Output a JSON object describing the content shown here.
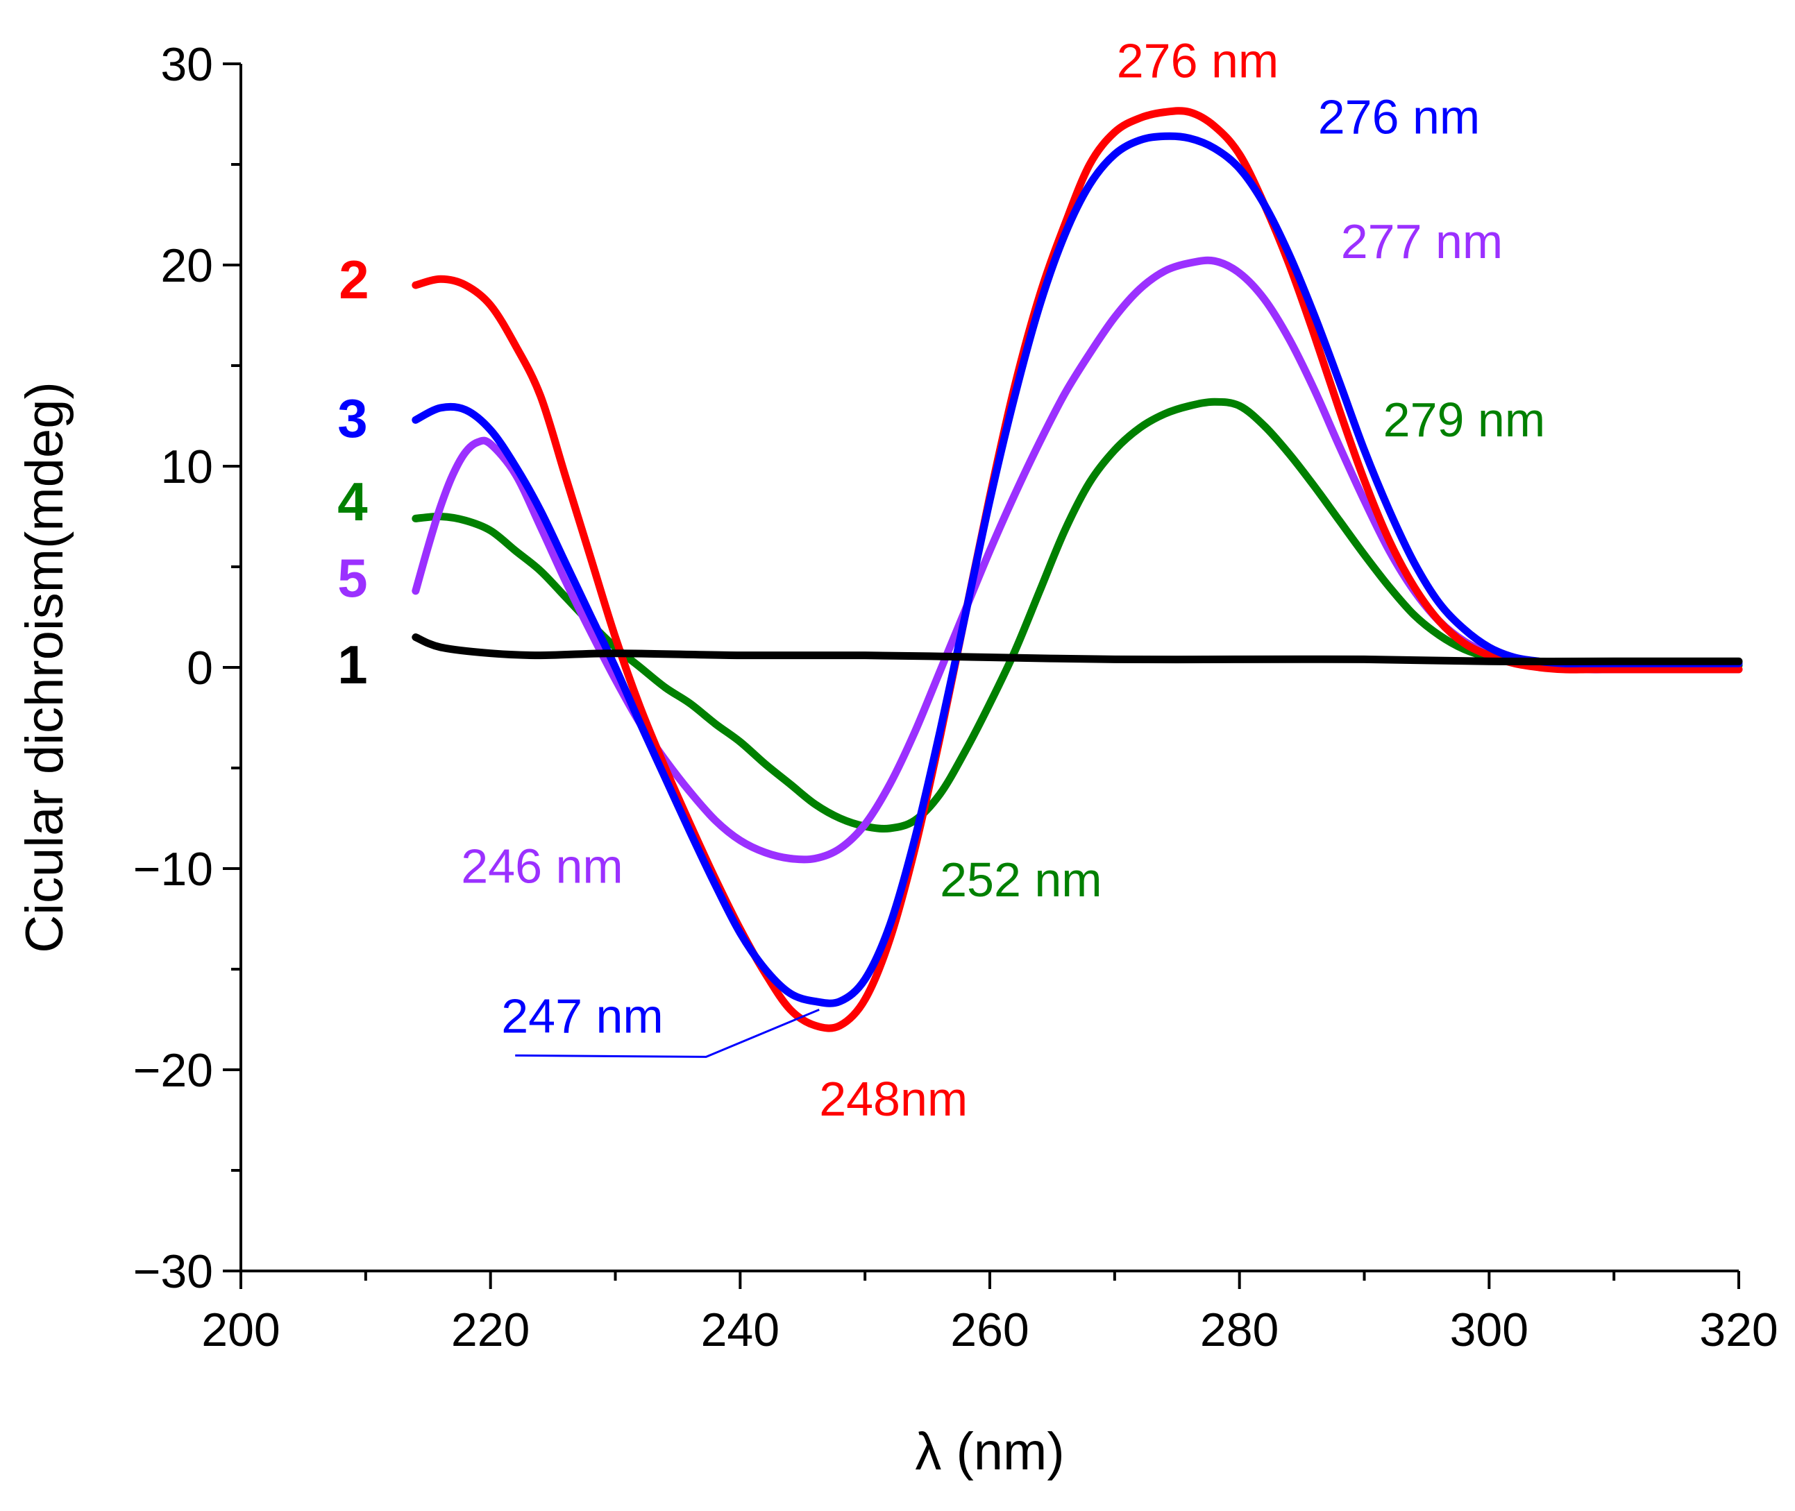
{
  "chart_data": {
    "type": "line",
    "title": "",
    "xlabel": "λ (nm)",
    "ylabel": "Cicular dichroism(mdeg)",
    "xlim": [
      200,
      320
    ],
    "ylim": [
      -30,
      30
    ],
    "x_major_ticks": [
      200,
      220,
      240,
      260,
      280,
      300,
      320
    ],
    "x_tick_labels": [
      "200",
      "220",
      "240",
      "260",
      "280",
      "300",
      "320"
    ],
    "y_major_ticks": [
      -30,
      -20,
      -10,
      0,
      10,
      20,
      30
    ],
    "y_tick_labels": [
      "−30",
      "−20",
      "−10",
      "0",
      "10",
      "20",
      "30"
    ],
    "grid": false,
    "series": [
      {
        "name": "1",
        "color": "#000000",
        "x": [
          214,
          216,
          220,
          224,
          230,
          240,
          250,
          260,
          270,
          280,
          290,
          300,
          310,
          320
        ],
        "y": [
          1.5,
          1.0,
          0.7,
          0.6,
          0.7,
          0.6,
          0.6,
          0.5,
          0.4,
          0.4,
          0.4,
          0.3,
          0.3,
          0.3
        ]
      },
      {
        "name": "2",
        "color": "#ff0000",
        "x": [
          214,
          216,
          218,
          220,
          222,
          224,
          226,
          228,
          230,
          232,
          234,
          236,
          238,
          240,
          242,
          244,
          246,
          248,
          250,
          252,
          254,
          256,
          258,
          260,
          262,
          264,
          266,
          268,
          270,
          272,
          274,
          276,
          278,
          280,
          282,
          284,
          286,
          288,
          290,
          292,
          294,
          296,
          298,
          300,
          302,
          304,
          306,
          308,
          310,
          314,
          320
        ],
        "y": [
          19.0,
          19.3,
          19.0,
          18.0,
          16.0,
          13.5,
          9.5,
          5.5,
          1.5,
          -2.0,
          -5.0,
          -7.8,
          -10.5,
          -13.0,
          -15.2,
          -17.0,
          -17.8,
          -17.8,
          -16.5,
          -13.5,
          -9.0,
          -3.5,
          2.5,
          8.5,
          14.0,
          18.5,
          22.0,
          25.0,
          26.6,
          27.3,
          27.6,
          27.6,
          26.9,
          25.5,
          23.0,
          20.0,
          16.5,
          12.8,
          9.3,
          6.3,
          4.0,
          2.3,
          1.2,
          0.6,
          0.2,
          0.0,
          -0.1,
          -0.1,
          -0.1,
          -0.1,
          -0.1
        ]
      },
      {
        "name": "3",
        "color": "#0000ff",
        "x": [
          214,
          216,
          218,
          220,
          222,
          224,
          226,
          228,
          230,
          232,
          234,
          236,
          238,
          240,
          242,
          244,
          246,
          248,
          250,
          252,
          254,
          256,
          258,
          260,
          262,
          264,
          266,
          268,
          270,
          272,
          274,
          276,
          278,
          280,
          282,
          284,
          286,
          288,
          290,
          292,
          294,
          296,
          298,
          300,
          302,
          304,
          306,
          308,
          310,
          314,
          320
        ],
        "y": [
          12.3,
          12.9,
          12.8,
          11.8,
          10.0,
          7.8,
          5.2,
          2.6,
          0.0,
          -2.8,
          -5.5,
          -8.2,
          -10.8,
          -13.2,
          -15.0,
          -16.2,
          -16.6,
          -16.6,
          -15.5,
          -12.8,
          -8.5,
          -3.2,
          2.5,
          8.3,
          13.5,
          18.0,
          21.5,
          24.0,
          25.5,
          26.2,
          26.4,
          26.3,
          25.8,
          24.8,
          23.0,
          20.5,
          17.5,
          14.2,
          10.8,
          7.8,
          5.2,
          3.2,
          1.9,
          1.0,
          0.5,
          0.3,
          0.2,
          0.2,
          0.2,
          0.2,
          0.2
        ]
      },
      {
        "name": "4",
        "color": "#008000",
        "x": [
          214,
          216,
          218,
          220,
          222,
          224,
          226,
          228,
          230,
          232,
          234,
          236,
          238,
          240,
          242,
          244,
          246,
          248,
          250,
          252,
          254,
          256,
          258,
          260,
          262,
          264,
          266,
          268,
          270,
          272,
          274,
          276,
          278,
          280,
          282,
          284,
          286,
          288,
          290,
          292,
          294,
          296,
          298,
          300,
          302,
          304,
          306,
          308,
          310,
          314,
          320
        ],
        "y": [
          7.4,
          7.5,
          7.3,
          6.8,
          5.8,
          4.8,
          3.5,
          2.2,
          1.0,
          0.0,
          -1.0,
          -1.8,
          -2.8,
          -3.7,
          -4.8,
          -5.8,
          -6.8,
          -7.5,
          -7.9,
          -8.0,
          -7.6,
          -6.3,
          -4.2,
          -1.8,
          0.8,
          3.8,
          6.8,
          9.2,
          10.8,
          11.9,
          12.6,
          13.0,
          13.2,
          13.0,
          12.0,
          10.6,
          9.0,
          7.3,
          5.6,
          4.0,
          2.6,
          1.6,
          0.9,
          0.5,
          0.3,
          0.2,
          0.1,
          0.1,
          0.1,
          0.1,
          0.1
        ]
      },
      {
        "name": "5",
        "color": "#9b30ff",
        "x": [
          214,
          215,
          216,
          217,
          218,
          219,
          220,
          222,
          224,
          226,
          228,
          230,
          232,
          234,
          236,
          238,
          240,
          242,
          244,
          246,
          248,
          250,
          252,
          254,
          256,
          258,
          260,
          262,
          264,
          266,
          268,
          270,
          272,
          274,
          276,
          278,
          280,
          282,
          284,
          286,
          288,
          290,
          292,
          294,
          296,
          298,
          300,
          302,
          304,
          306,
          308,
          310,
          314,
          320
        ],
        "y": [
          3.8,
          6.0,
          8.0,
          9.6,
          10.7,
          11.2,
          11.1,
          9.6,
          7.0,
          4.3,
          1.8,
          -0.6,
          -2.8,
          -4.6,
          -6.2,
          -7.6,
          -8.6,
          -9.2,
          -9.5,
          -9.5,
          -9.0,
          -7.8,
          -5.8,
          -3.2,
          -0.2,
          2.8,
          5.8,
          8.6,
          11.2,
          13.6,
          15.6,
          17.4,
          18.8,
          19.7,
          20.1,
          20.2,
          19.6,
          18.3,
          16.3,
          13.8,
          11.0,
          8.3,
          5.8,
          3.8,
          2.3,
          1.3,
          0.7,
          0.3,
          0.1,
          0.0,
          -0.1,
          -0.1,
          -0.1,
          -0.1
        ]
      }
    ],
    "series_labels": [
      {
        "text": "1",
        "color": "#000000"
      },
      {
        "text": "2",
        "color": "#ff0000"
      },
      {
        "text": "3",
        "color": "#0000ff"
      },
      {
        "text": "4",
        "color": "#008000"
      },
      {
        "text": "5",
        "color": "#9b30ff"
      }
    ],
    "annotations": [
      {
        "text": "276 nm",
        "color": "#ff0000",
        "x": 276,
        "y": 27.6
      },
      {
        "text": "276 nm",
        "color": "#0000ff",
        "x": 276,
        "y": 26.3
      },
      {
        "text": "277 nm",
        "color": "#9b30ff",
        "x": 277,
        "y": 20.2
      },
      {
        "text": "279 nm",
        "color": "#008000",
        "x": 279,
        "y": 13.2
      },
      {
        "text": "246 nm",
        "color": "#9b30ff",
        "x": 246,
        "y": -9.5
      },
      {
        "text": "252 nm",
        "color": "#008000",
        "x": 252,
        "y": -8.0
      },
      {
        "text": "247 nm",
        "color": "#0000ff",
        "x": 247,
        "y": -16.6
      },
      {
        "text": "248nm",
        "color": "#ff0000",
        "x": 248,
        "y": -17.8
      }
    ]
  }
}
